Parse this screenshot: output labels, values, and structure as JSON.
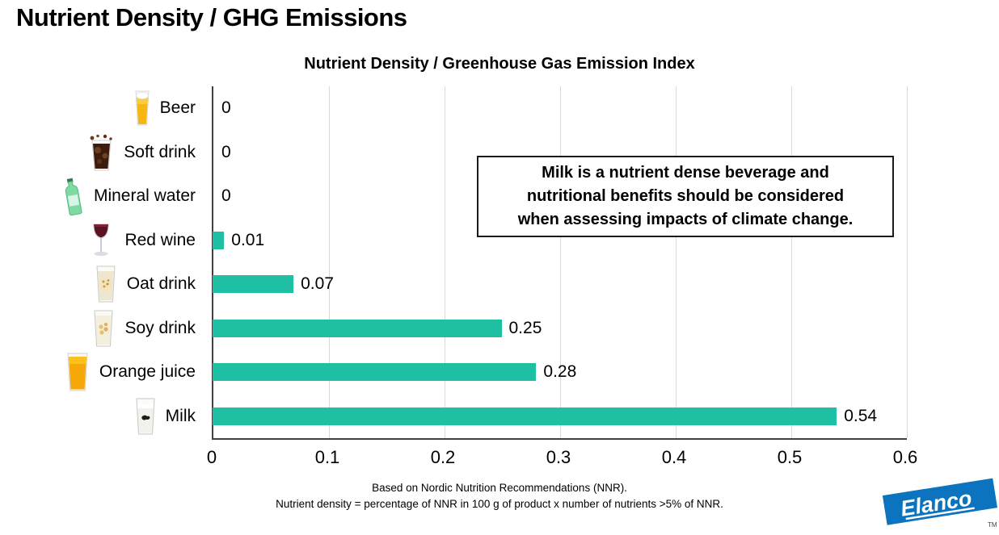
{
  "page": {
    "title": "Nutrient Density / GHG Emissions"
  },
  "chart": {
    "annotation": {
      "lines": [
        "Milk is a nutrient dense beverage and",
        "nutritional benefits should be considered",
        "when assessing impacts of climate change."
      ]
    },
    "footnotes": [
      "Based on Nordic Nutrition Recommendations (NNR).",
      "Nutrient density = percentage of NNR in 100 g of product x number of nutrients >5% of NNR."
    ]
  },
  "chart_data": {
    "type": "bar",
    "orientation": "horizontal",
    "title": "Nutrient Density / Greenhouse Gas Emission Index",
    "categories": [
      "Beer",
      "Soft drink",
      "Mineral water",
      "Red wine",
      "Oat drink",
      "Soy drink",
      "Orange juice",
      "Milk"
    ],
    "values": [
      0,
      0,
      0,
      0.01,
      0.07,
      0.25,
      0.28,
      0.54
    ],
    "value_labels": [
      "0",
      "0",
      "0",
      "0.01",
      "0.07",
      "0.25",
      "0.28",
      "0.54"
    ],
    "icons": [
      "beer-icon",
      "soft-drink-icon",
      "mineral-water-icon",
      "red-wine-icon",
      "oat-drink-icon",
      "soy-drink-icon",
      "orange-juice-icon",
      "milk-icon"
    ],
    "xlabel": "",
    "ylabel": "",
    "xlim": [
      0,
      0.6
    ],
    "x_ticks": [
      "0",
      "0.1",
      "0.2",
      "0.3",
      "0.4",
      "0.5",
      "0.6"
    ],
    "grid": true,
    "legend": false,
    "bar_color": "#1FBFA4",
    "gridline_color": "#d9d9d9",
    "axis_color": "#404040"
  },
  "logo": {
    "text": "Elanco",
    "tm": "TM",
    "color": "#0C74BE"
  }
}
